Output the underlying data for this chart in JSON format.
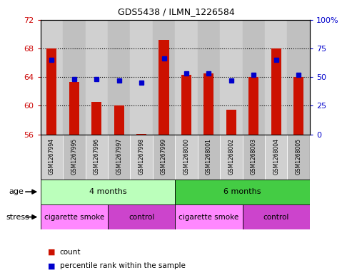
{
  "title": "GDS5438 / ILMN_1226584",
  "samples": [
    "GSM1267994",
    "GSM1267995",
    "GSM1267996",
    "GSM1267997",
    "GSM1267998",
    "GSM1267999",
    "GSM1268000",
    "GSM1268001",
    "GSM1268002",
    "GSM1268003",
    "GSM1268004",
    "GSM1268005"
  ],
  "counts": [
    68.0,
    63.3,
    60.5,
    60.0,
    56.1,
    69.2,
    64.3,
    64.5,
    59.4,
    64.0,
    68.0,
    64.0
  ],
  "percentiles_pct": [
    65.0,
    48.0,
    48.0,
    47.0,
    45.0,
    66.0,
    53.0,
    53.0,
    47.0,
    52.0,
    65.0,
    52.0
  ],
  "ylim_left": [
    56,
    72
  ],
  "ylim_right": [
    0,
    100
  ],
  "yticks_left": [
    56,
    60,
    64,
    68,
    72
  ],
  "yticks_right": [
    0,
    25,
    50,
    75,
    100
  ],
  "bar_color": "#cc1100",
  "dot_color": "#0000cc",
  "bar_bottom": 56,
  "age_groups": [
    {
      "label": "4 months",
      "start": 0,
      "end": 6,
      "color": "#bbffbb"
    },
    {
      "label": "6 months",
      "start": 6,
      "end": 12,
      "color": "#44cc44"
    }
  ],
  "stress_groups": [
    {
      "label": "cigarette smoke",
      "start": 0,
      "end": 3,
      "color": "#ff88ff"
    },
    {
      "label": "control",
      "start": 3,
      "end": 6,
      "color": "#cc44cc"
    },
    {
      "label": "cigarette smoke",
      "start": 6,
      "end": 9,
      "color": "#ff88ff"
    },
    {
      "label": "control",
      "start": 9,
      "end": 12,
      "color": "#cc44cc"
    }
  ],
  "tick_label_color_left": "#cc0000",
  "tick_label_color_right": "#0000cc",
  "age_label": "age",
  "stress_label": "stress",
  "grid_dotted_at": [
    60,
    64,
    68
  ],
  "col_bg_even": "#d0d0d0",
  "col_bg_odd": "#c0c0c0"
}
